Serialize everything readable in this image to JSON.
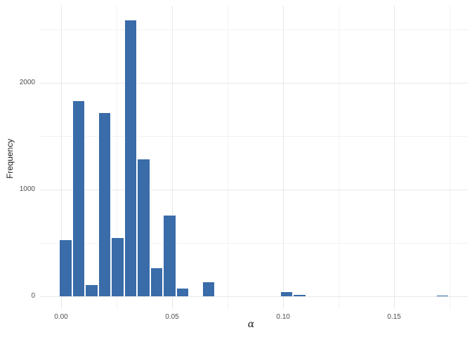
{
  "chart_data": {
    "type": "bar",
    "subtype": "histogram",
    "title": "",
    "xlabel": "α",
    "ylabel": "Frequency",
    "legend": "none",
    "grid": "on",
    "xlim": [
      -0.0095,
      0.1832
    ],
    "ylim": [
      -120,
      2724
    ],
    "x_tick_values": [
      0.0,
      0.05,
      0.1,
      0.15
    ],
    "x_tick_labels": [
      "0.00",
      "0.05",
      "0.10",
      "0.15"
    ],
    "x_minor_gridlines": [
      0.025,
      0.075,
      0.125,
      0.175
    ],
    "y_tick_values": [
      0,
      1000,
      2000
    ],
    "y_tick_labels": [
      "0",
      "1000",
      "2000"
    ],
    "y_minor_gridlines": [
      500,
      1500,
      2500
    ],
    "binwidth": 0.005854,
    "bins": [
      {
        "center": 0.002,
        "count": 530
      },
      {
        "center": 0.0079,
        "count": 1835
      },
      {
        "center": 0.0137,
        "count": 110
      },
      {
        "center": 0.0196,
        "count": 1725
      },
      {
        "center": 0.0254,
        "count": 555
      },
      {
        "center": 0.0313,
        "count": 2595
      },
      {
        "center": 0.0371,
        "count": 1290
      },
      {
        "center": 0.043,
        "count": 270
      },
      {
        "center": 0.0488,
        "count": 760
      },
      {
        "center": 0.0547,
        "count": 80
      },
      {
        "center": 0.0664,
        "count": 135
      },
      {
        "center": 0.1015,
        "count": 45
      },
      {
        "center": 0.1074,
        "count": 18
      },
      {
        "center": 0.1718,
        "count": 13
      }
    ],
    "colors": {
      "bar_fill": "#396ca9",
      "bar_stroke": "#ffffff",
      "grid_major": "#e8e8e8",
      "grid_minor": "#f2f2f2",
      "tick_label": "#4d4d4d",
      "axis_title": "#1a1a1a",
      "background": "#ffffff"
    }
  }
}
